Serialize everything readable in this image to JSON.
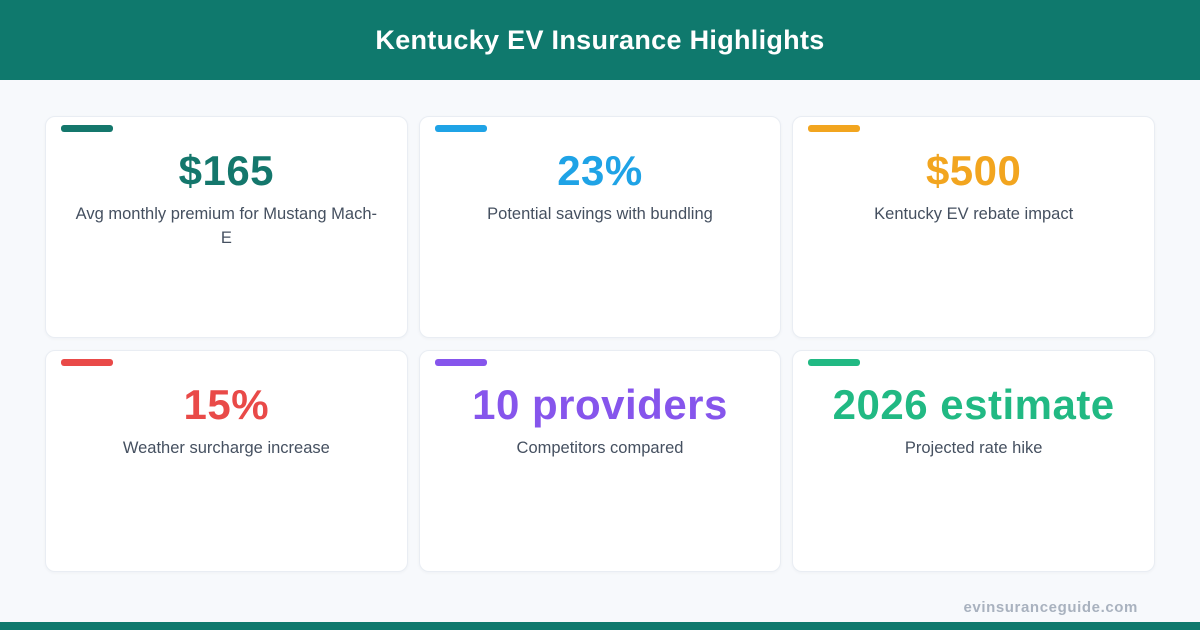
{
  "header": {
    "title": "Kentucky EV Insurance Highlights",
    "bg_color": "#0F796D"
  },
  "theme": {
    "page_bg": "#F7F9FC",
    "card_bg": "#FFFFFF",
    "card_border": "#E9EDF3",
    "label_color": "#455060",
    "footer_text_color": "#A9B2BF",
    "bottom_bar_color": "#0F796D"
  },
  "cards": [
    {
      "value": "$165",
      "label": "Avg monthly premium for Mustang Mach-E",
      "accent": "#14776C"
    },
    {
      "value": "23%",
      "label": "Potential savings with bundling",
      "accent": "#1FA3E6"
    },
    {
      "value": "$500",
      "label": "Kentucky EV rebate impact",
      "accent": "#F2A51F"
    },
    {
      "value": "15%",
      "label": "Weather surcharge increase",
      "accent": "#E94A48"
    },
    {
      "value": "10 providers",
      "label": "Competitors compared",
      "accent": "#8655EC"
    },
    {
      "value": "2026 estimate",
      "label": "Projected rate hike",
      "accent": "#21B983"
    }
  ],
  "footer": {
    "website": "evinsuranceguide.com"
  }
}
